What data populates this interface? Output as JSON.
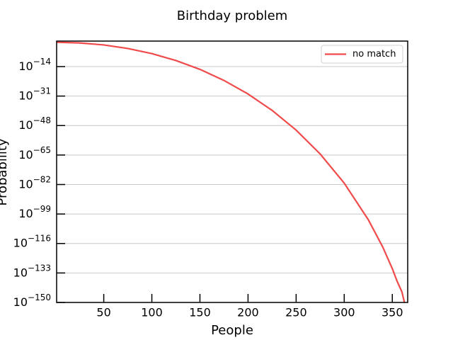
{
  "chart_data": {
    "type": "line",
    "title": "Birthday problem",
    "xlabel": "People",
    "ylabel": "Probability",
    "x": [
      1,
      25,
      50,
      75,
      100,
      125,
      150,
      175,
      200,
      225,
      250,
      275,
      300,
      325,
      340,
      350,
      355,
      360,
      362,
      363
    ],
    "series": [
      {
        "name": "no match",
        "color": "#f04a4a",
        "values": [
          1,
          0.4313,
          0.0297,
          0.000282,
          3.07e-07,
          3.2e-11,
          2.5e-16,
          1e-22,
          1.6e-30,
          5.8e-40,
          2.3e-51,
          4e-65,
          6.3e-82,
          5.5e-103,
          1.07e-118,
          3e-131,
          1.7e-138,
          1.17e-144,
          2.3e-149,
          7.1e-152
        ]
      }
    ],
    "xlim": [
      1,
      366
    ],
    "xticks": [
      50,
      100,
      150,
      200,
      250,
      300,
      350
    ],
    "ylim": [
      1e-150,
      5
    ],
    "yscale": "log",
    "yticks": [
      {
        "value": 1e-150,
        "label": "10−150"
      },
      {
        "value": 1e-133,
        "label": "10−133"
      },
      {
        "value": 1e-116,
        "label": "10−116"
      },
      {
        "value": 1e-99,
        "label": "10−99"
      },
      {
        "value": 1e-82,
        "label": "10−82"
      },
      {
        "value": 1e-65,
        "label": "10−65"
      },
      {
        "value": 1e-48,
        "label": "10−48"
      },
      {
        "value": 1e-31,
        "label": "10−31"
      },
      {
        "value": 1e-14,
        "label": "10−14"
      }
    ],
    "grid": "y",
    "legend": "upper right"
  }
}
